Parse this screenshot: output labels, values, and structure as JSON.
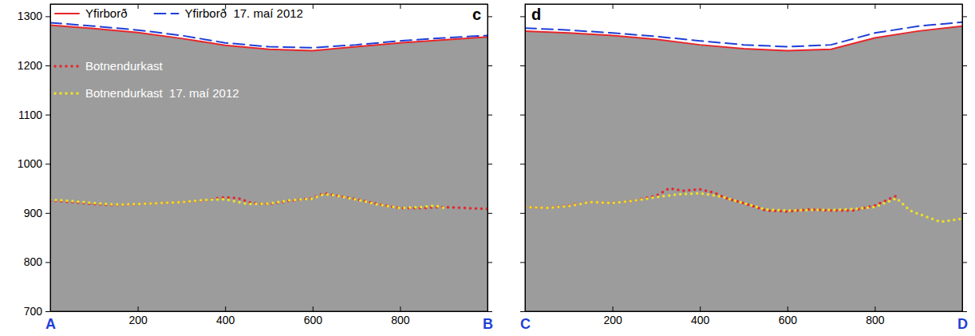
{
  "chart_data": [
    {
      "type": "line",
      "panel_label": "c",
      "legend": "upper left",
      "tick_labels": true,
      "xlim": [
        0,
        1000
      ],
      "ylim": [
        700,
        1325
      ],
      "xticks": [
        {
          "value": 0,
          "label": "A"
        },
        200,
        400,
        600,
        800,
        {
          "value": 1000,
          "label": "B"
        }
      ],
      "yticks": [
        700,
        800,
        900,
        1000,
        1100,
        1200,
        1300
      ],
      "series": [
        {
          "name": "Yfirborð",
          "color": "#e8262a",
          "line_style": "solid",
          "x": [
            0,
            100,
            200,
            300,
            400,
            500,
            600,
            700,
            800,
            900,
            1000
          ],
          "values": [
            1282,
            1275,
            1267,
            1255,
            1241,
            1233,
            1230,
            1238,
            1246,
            1252,
            1258
          ]
        },
        {
          "name": "Yfirborð  17. maí 2012",
          "color": "#1f3fd8",
          "line_style": "dashed",
          "x": [
            0,
            100,
            200,
            300,
            400,
            500,
            600,
            700,
            800,
            900,
            1000
          ],
          "values": [
            1287,
            1280,
            1272,
            1261,
            1246,
            1238,
            1236,
            1242,
            1250,
            1256,
            1261
          ]
        },
        {
          "name": "Botnendurkast",
          "color": "#e8262a",
          "line_style": "dotted",
          "x": [
            0,
            50,
            100,
            150,
            200,
            250,
            300,
            350,
            400,
            430,
            460,
            500,
            550,
            600,
            625,
            650,
            700,
            750,
            800,
            850,
            900,
            950,
            1000
          ],
          "values": [
            925,
            922,
            918,
            916,
            918,
            920,
            922,
            925,
            932,
            930,
            920,
            918,
            925,
            930,
            940,
            936,
            928,
            918,
            910,
            910,
            912,
            910,
            908
          ]
        },
        {
          "name": "Botnendurkast  17. maí 2012",
          "color": "#f0e020",
          "line_style": "dotted",
          "x": [
            0,
            50,
            100,
            150,
            200,
            250,
            300,
            350,
            400,
            450,
            500,
            550,
            600,
            625,
            650,
            700,
            750,
            800,
            850,
            880,
            900
          ],
          "values": [
            927,
            924,
            920,
            917,
            918,
            920,
            922,
            926,
            928,
            918,
            919,
            926,
            929,
            938,
            936,
            927,
            917,
            910,
            912,
            915,
            910
          ]
        }
      ]
    },
    {
      "type": "line",
      "panel_label": "d",
      "tick_labels": "x",
      "xlim": [
        0,
        1000
      ],
      "ylim": [
        700,
        1325
      ],
      "xticks": [
        {
          "value": 0,
          "label": "C"
        },
        200,
        400,
        600,
        800,
        {
          "value": 1000,
          "label": "D"
        }
      ],
      "yticks": [
        700,
        800,
        900,
        1000,
        1100,
        1200,
        1300
      ],
      "series": [
        {
          "name": "Yfirborð",
          "color": "#e8262a",
          "line_style": "solid",
          "x": [
            0,
            100,
            200,
            300,
            400,
            500,
            600,
            700,
            800,
            900,
            1000
          ],
          "values": [
            1270,
            1266,
            1261,
            1253,
            1242,
            1234,
            1230,
            1233,
            1256,
            1270,
            1280
          ]
        },
        {
          "name": "Yfirborð  17. maí 2012",
          "color": "#1f3fd8",
          "line_style": "dashed",
          "x": [
            0,
            100,
            200,
            300,
            400,
            500,
            600,
            700,
            800,
            900,
            1000
          ],
          "values": [
            1276,
            1272,
            1266,
            1259,
            1250,
            1242,
            1238,
            1242,
            1266,
            1280,
            1288
          ]
        },
        {
          "name": "Botnendurkast",
          "color": "#e8262a",
          "line_style": "dotted",
          "x": [
            0,
            50,
            100,
            150,
            200,
            250,
            300,
            330,
            360,
            400,
            430,
            460,
            500,
            550,
            600,
            650,
            700,
            750,
            800,
            850
          ],
          "values": [
            912,
            910,
            915,
            922,
            920,
            925,
            935,
            950,
            945,
            948,
            942,
            930,
            920,
            905,
            903,
            907,
            905,
            905,
            915,
            935
          ]
        },
        {
          "name": "Botnendurkast  17. maí 2012",
          "color": "#f0e020",
          "line_style": "dotted",
          "x": [
            0,
            50,
            100,
            150,
            200,
            250,
            300,
            350,
            400,
            450,
            500,
            550,
            600,
            650,
            700,
            750,
            800,
            850,
            880,
            900,
            950,
            1000
          ],
          "values": [
            912,
            910,
            914,
            922,
            920,
            925,
            932,
            938,
            940,
            933,
            920,
            907,
            905,
            906,
            906,
            908,
            912,
            930,
            905,
            898,
            882,
            888
          ]
        }
      ]
    }
  ]
}
